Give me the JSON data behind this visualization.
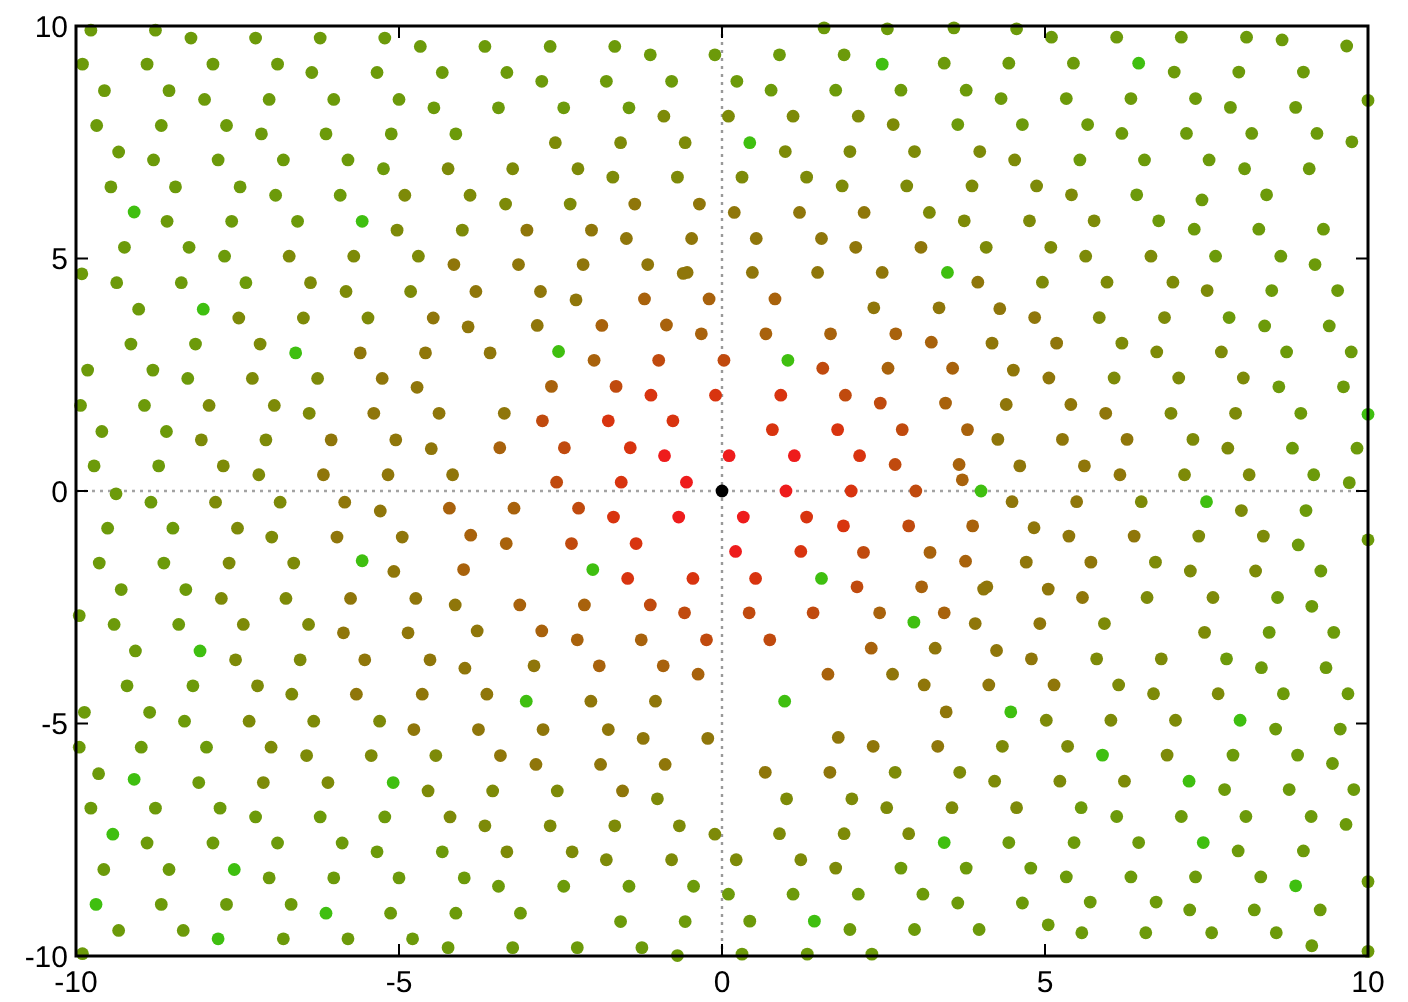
{
  "chart_data": {
    "type": "scatter",
    "xlim": [
      -10,
      10
    ],
    "ylim": [
      -10,
      10
    ],
    "xticks": [
      -10,
      -5,
      0,
      5,
      10
    ],
    "yticks": [
      -10,
      -5,
      0,
      5,
      10
    ],
    "grid": false,
    "marker": "circle",
    "ref_lines": [
      {
        "axis": "x",
        "value": 0,
        "color": "#999999",
        "line_style": "dotted"
      },
      {
        "axis": "y",
        "value": 0,
        "color": "#a3a3a3",
        "line_style": "dotted"
      }
    ],
    "series": [
      {
        "color": "#000000",
        "x": [
          0
        ],
        "values": [
          0
        ]
      },
      {
        "color": "#ee1c1c",
        "x": [
          0.99,
          0.11,
          -0.89,
          -0.55,
          0.33,
          -0.67,
          0.21,
          1.12
        ],
        "values": [
          0,
          0.76,
          0.76,
          0.19,
          -0.56,
          -0.56,
          -1.3,
          0.76
        ]
      },
      {
        "color": "#d8340f",
        "x": [
          1.22,
          -0.1,
          0.91,
          0.78,
          1.79,
          2.0,
          -0.76,
          -1.76,
          -1.56,
          -1.68,
          -1.33,
          -1.46,
          -0.45,
          0.52,
          1.31,
          1.88,
          -1.1,
          -1.42,
          2.13
        ],
        "values": [
          -1.3,
          2.06,
          2.06,
          1.32,
          1.32,
          0,
          1.51,
          1.51,
          0.19,
          -0.56,
          -1.13,
          -1.88,
          -1.88,
          -1.88,
          -0.56,
          -0.75,
          2.06,
          0.93,
          0.76
        ]
      },
      {
        "color": "#c04a0e",
        "x": [
          2.09,
          3.0,
          -2.56,
          -2.33,
          0.42,
          1.41,
          -0.58,
          -1.11,
          -2.22,
          -2.44,
          -2.78,
          -1.64,
          -0.98,
          0.03,
          1.56,
          1.91,
          2.79,
          2.68,
          2.89,
          2.19,
          2.45,
          0.74,
          -0.24
        ],
        "values": [
          -2.06,
          0,
          0.19,
          -1.13,
          -2.62,
          -2.62,
          -2.62,
          -2.45,
          -0.37,
          0.93,
          1.51,
          2.25,
          2.81,
          2.81,
          2.64,
          2.06,
          1.32,
          0.57,
          -0.75,
          -1.32,
          1.89,
          -3.2,
          -3.2
        ]
      },
      {
        "color": "#a8620c",
        "x": [
          3.09,
          -3.34,
          -3.22,
          -3.44,
          -2.64,
          -1.98,
          -1.86,
          -1.2,
          -0.2,
          -0.32,
          0.68,
          1.68,
          0.82,
          2.57,
          3.67,
          3.8,
          3.46,
          3.57,
          3.24,
          2.69,
          -0.86,
          3.22,
          3.77,
          2.44,
          3.44,
          2.31,
          -0.37,
          -0.91,
          -1.9,
          -2.24,
          -2.13,
          -3.13,
          -1.25,
          3.88,
          1.64,
          -2.79,
          -4.22,
          -3.89,
          -4.0,
          3.72
        ],
        "values": [
          -2.06,
          -1.13,
          -0.37,
          0.93,
          2.25,
          2.81,
          3.56,
          4.13,
          4.13,
          3.38,
          3.38,
          3.38,
          4.13,
          2.64,
          0.57,
          1.32,
          1.89,
          2.64,
          3.2,
          3.38,
          3.57,
          -1.32,
          -1.51,
          -2.62,
          -2.62,
          -3.38,
          -3.94,
          -3.76,
          -3.76,
          -3.2,
          -2.45,
          -2.45,
          -3.2,
          -0.75,
          -3.94,
          -3.01,
          -0.37,
          -0.95,
          -1.69,
          0.24
        ]
      },
      {
        "color": "#8f760a",
        "x": [
          -0.54,
          0.47,
          1.48,
          2.48,
          2.35,
          3.36,
          -2.86,
          2.64,
          3.3,
          4.1,
          -1.03,
          -2.03,
          -2.91,
          -3.79,
          -4.13,
          -1.35,
          -0.35,
          -3.02,
          -2.02,
          -1.48,
          -0.47,
          -4.15,
          -3.15,
          -2.15,
          -1.15,
          -0.6,
          -3.81,
          -2.81,
          -2.26,
          -4.47,
          -3.93,
          -5.6,
          -4.59,
          -3.59,
          -5.26,
          -4.72,
          -5.39,
          -4.38,
          -3.37,
          -6.05,
          -5.05,
          -4.5,
          -6.17,
          -5.17,
          -4.17,
          4.49,
          5.49,
          4.83,
          5.37,
          6.38,
          4.71,
          5.71,
          4.05,
          5.05,
          5.58,
          3.92,
          4.92,
          4.25,
          4.79,
          3.13,
          4.13,
          5.14,
          3.47,
          1.8,
          2.34,
          3.34,
          0.67,
          1.67,
          0.19,
          1.2,
          2.2,
          0.53,
          1.54,
          2.07,
          3.08,
          3.96,
          4.3,
          4.84,
          4.18,
          5.18,
          4.51,
          5.06,
          4.4,
          5.4,
          5.94,
          4.27,
          5.27,
          6.27,
          4.61,
          5.61,
          6.16,
          -5.84,
          -5.29,
          -5.96,
          -4.95,
          -5.08,
          -5.75,
          -4.74,
          -5.86,
          -4.86,
          -5.53,
          -4.52,
          -3.98,
          -5.66,
          -4.64,
          -3.64,
          -4.77,
          -3.77,
          -2.77,
          -1.76,
          -1.22,
          -0.22,
          -3.43,
          -2.88,
          -1.88,
          -0.88,
          -1.54
        ],
        "values": [
          4.7,
          4.7,
          4.7,
          4.7,
          3.94,
          3.94,
          3.56,
          -3.94,
          -3.38,
          -2.06,
          -4.52,
          -4.52,
          -3.76,
          -3.01,
          -2.45,
          6.17,
          6.17,
          5.61,
          5.61,
          5.43,
          5.43,
          4.87,
          4.87,
          4.87,
          4.87,
          4.68,
          4.29,
          4.29,
          4.11,
          3.72,
          3.53,
          2.97,
          2.97,
          2.97,
          2.42,
          2.23,
          1.67,
          1.67,
          1.67,
          1.1,
          1.1,
          0.91,
          0.35,
          0.35,
          0.35,
          -0.23,
          -0.23,
          -0.79,
          -0.97,
          -0.97,
          -1.53,
          -1.53,
          -2.11,
          -2.11,
          -2.29,
          -2.85,
          -2.85,
          -3.43,
          -3.61,
          -4.17,
          -4.17,
          -4.17,
          -4.75,
          -5.3,
          -5.49,
          -5.49,
          -6.05,
          -6.05,
          5.99,
          5.99,
          5.99,
          5.43,
          5.43,
          5.24,
          5.24,
          4.49,
          3.92,
          3.73,
          3.18,
          3.18,
          2.6,
          2.43,
          1.86,
          1.86,
          1.67,
          1.11,
          1.11,
          1.11,
          0.54,
          0.54,
          0.35,
          -0.24,
          -0.43,
          -0.99,
          -0.99,
          -1.73,
          -2.31,
          -2.31,
          -3.05,
          -3.05,
          -3.63,
          -3.63,
          -3.81,
          -4.37,
          -4.37,
          -4.37,
          -5.13,
          -5.13,
          -5.13,
          -5.13,
          -5.32,
          -5.32,
          -5.69,
          -5.88,
          -5.88,
          -5.88,
          -6.45
        ]
      },
      {
        "color": "#7d8a08",
        "x": [
          -0.9,
          -2.58,
          -1.57,
          -0.57,
          -4.24,
          -3.24,
          -2.23,
          -1.69,
          -0.69,
          -4.91,
          -3.9,
          -3.35,
          -2.35,
          -5.03,
          -4.02,
          -6.7,
          -5.7,
          -4.7,
          -6.37,
          -5.82,
          -4.82,
          -7.48,
          -6.48,
          -5.48,
          -7.15,
          -7.27,
          -6.26,
          -7.94,
          -6.93,
          -6.39,
          -8.06,
          -7.06,
          -7.72,
          -7.17,
          6.49,
          8.04,
          7.38,
          8.38,
          6.71,
          7.25,
          8.26,
          6.58,
          7.6,
          5.92,
          7.47,
          5.8,
          6.8,
          6.14,
          6.68,
          7.68,
          5.02,
          6.02,
          7.02,
          4.34,
          5.35,
          6.89,
          2.68,
          3.68,
          4.22,
          5.23,
          6.23,
          1.0,
          2.01,
          2.55,
          3.56,
          4.56,
          0.89,
          1.89,
          2.89,
          0.22,
          1.22,
          1.76,
          0.1,
          1.1,
          2.11,
          2.65,
          0.98,
          1.98,
          2.98,
          3.99,
          4.53,
          0.31,
          1.31,
          1.86,
          2.86,
          3.87,
          4.87,
          5.41,
          3.21,
          3.75,
          4.76,
          5.76,
          4.09,
          5.09,
          5.63,
          6.64,
          4.96,
          5.96,
          6.98,
          7.51,
          5.84,
          6.85,
          6.19,
          6.73,
          7.73,
          6.07,
          7.07,
          8.07,
          6.95,
          7.95,
          7.29,
          7.83,
          7.16,
          8.16,
          -7.84,
          -6.84,
          -7.5,
          -6.97,
          -7.63,
          -6.63,
          -7.75,
          -6.75,
          -7.41,
          -6.4,
          -7.53,
          -6.53,
          -7.19,
          -6.66,
          -7.32,
          -6.32,
          -5.3,
          -6.98,
          -6.43,
          -5.43,
          -4.43,
          -7.1,
          -6.1,
          -4.55,
          -3.55,
          -2.55,
          -1.0,
          -4.21,
          -3.67,
          -2.66,
          -1.66,
          -0.66,
          -0.11,
          -3.33,
          -2.32,
          -1.79,
          -0.78
        ],
        "values": [
          8.06,
          7.49,
          7.49,
          7.49,
          6.93,
          6.93,
          6.93,
          6.75,
          6.75,
          6.36,
          6.36,
          6.17,
          6.17,
          5.61,
          5.61,
          5.05,
          5.05,
          5.05,
          4.48,
          4.29,
          4.29,
          3.72,
          3.72,
          3.72,
          3.16,
          2.42,
          2.42,
          1.84,
          1.84,
          1.67,
          1.1,
          1.1,
          0.54,
          0.35,
          -0.23,
          -0.42,
          -0.97,
          -0.97,
          -1.53,
          -1.72,
          -1.72,
          -2.29,
          -2.29,
          -2.85,
          -3.04,
          -3.61,
          -3.61,
          -4.17,
          -4.36,
          -4.36,
          -4.93,
          -4.93,
          -4.93,
          -5.49,
          -5.49,
          -5.68,
          -6.05,
          -6.05,
          -6.24,
          -6.24,
          -6.24,
          -6.62,
          -6.62,
          -6.81,
          -6.81,
          -6.81,
          -7.37,
          -7.37,
          -7.37,
          -7.93,
          -7.93,
          -8.11,
          8.06,
          8.06,
          8.06,
          7.88,
          7.3,
          7.3,
          7.3,
          7.3,
          7.12,
          6.75,
          6.75,
          6.56,
          6.56,
          6.56,
          6.56,
          6.37,
          5.99,
          5.81,
          5.81,
          5.81,
          5.24,
          5.24,
          5.05,
          5.05,
          4.49,
          4.49,
          4.49,
          4.31,
          3.73,
          3.73,
          3.18,
          2.99,
          2.99,
          2.43,
          2.43,
          2.43,
          1.67,
          1.67,
          1.11,
          0.92,
          0.35,
          0.35,
          -0.24,
          -0.24,
          -0.8,
          -0.99,
          -1.55,
          -1.55,
          -2.31,
          -2.31,
          -2.87,
          -2.87,
          -3.63,
          -3.63,
          -4.19,
          -4.37,
          -4.95,
          -4.95,
          -4.95,
          -5.51,
          -5.69,
          -5.69,
          -5.69,
          -6.27,
          -6.27,
          -6.45,
          -6.45,
          -6.45,
          -6.62,
          -7.01,
          -7.2,
          -7.2,
          -7.2,
          -7.2,
          -7.38,
          -7.76,
          -7.76,
          -7.93,
          -7.93
        ]
      },
      {
        "color": "#6c9a0a",
        "x": [
          5.05,
          5.57,
          6.56,
          7.58,
          8.58,
          9.13,
          5.7,
          6.72,
          7.24,
          8.24,
          9.26,
          1.58,
          3.59,
          -9.9,
          10,
          10,
          10,
          10,
          7.43,
          8.67,
          -8.22,
          -7.22,
          -6.22,
          -5.22,
          -9.77,
          -8.77,
          -4.67,
          -3.67,
          -2.66,
          -1.66,
          -1.11,
          -0.11,
          -9.9,
          -8.9,
          -7.88,
          -6.88,
          -6.35,
          -5.34,
          -4.33,
          -3.33,
          -2.79,
          -1.79,
          -0.78,
          -9.56,
          -8.56,
          -8.01,
          -7.01,
          -6.01,
          -5.0,
          -4.46,
          -3.46,
          -2.45,
          -1.44,
          -9.68,
          -8.68,
          -7.67,
          -7.13,
          -6.13,
          -5.12,
          -4.12,
          -9.34,
          -8.8,
          -7.8,
          -6.79,
          -5.79,
          -5.24,
          -9.46,
          -8.46,
          -7.46,
          -6.91,
          -5.91,
          -8.59,
          -7.59,
          -6.57,
          -9.25,
          -8.25,
          -7.7,
          -9.91,
          -9.37,
          -8.37,
          -7.37,
          -9.03,
          -9.15,
          -8.15,
          -9.82,
          -8.81,
          -8.27,
          -9.93,
          -8.94,
          -9.6,
          -8.6,
          -9.72,
          -8.72,
          9.04,
          8.92,
          9.27,
          8.6,
          9.13,
          8.47,
          9.47,
          7.81,
          8.35,
          9.35,
          8.69,
          9.69,
          8.57,
          9.57,
          7.91,
          8.91,
          9.45,
          7.78,
          8.78,
          9.78,
          5.56,
          6.11,
          7.11,
          8.11,
          9.12,
          9.66,
          4.44,
          5.45,
          6.45,
          7.99,
          9.0,
          2.77,
          3.78,
          4.78,
          5.33,
          6.33,
          7.33,
          8.34,
          0.1,
          1.1,
          2.11,
          3.11,
          3.65,
          4.65,
          0.43,
          1.98,
          2.98,
          3.98,
          0.31,
          1.32,
          2.32,
          2.56,
          4.56,
          5.1,
          6.11,
          7.11,
          8.12,
          9.67,
          0.89,
          1.89,
          3.44,
          4.44,
          5.44,
          7.0,
          8.0,
          9.0,
          0.23,
          0.76,
          1.76,
          2.77,
          3.78,
          4.32,
          5.33,
          6.33,
          7.33,
          7.87,
          8.88,
          3.65,
          4.65,
          5.66,
          6.19,
          7.19,
          8.2,
          9.21,
          9.75,
          5.54,
          6.54,
          7.54,
          8.09,
          9.09,
          6.42,
          8.43,
          6.76,
          7.31,
          8.31,
          9.31,
          7.64,
          8.65,
          9.18,
          8.51,
          9.53,
          7.85,
          8.4,
          9.4,
          8.74,
          9.74,
          8.62,
          9.62,
          8.96,
          8.83,
          9.83,
          9.16,
          9.71,
          -9.38,
          -8.84,
          -9.51,
          -8.5,
          -9.64,
          -8.64,
          -9.3,
          -8.3,
          -9.95,
          -9.41,
          -8.41,
          -9.08,
          -9.21,
          -8.19,
          -9.87,
          -8.86,
          -8.32,
          -9.95,
          -8.99,
          -7.98,
          -9.65,
          -8.1,
          -9.77,
          -8.77,
          -7.77,
          -7.22,
          -6.22,
          -5.22,
          -8.9,
          -7.88,
          -6.88,
          -5.88,
          -5.34,
          -4.33,
          -9.57,
          -8.56,
          -7.01,
          -6.01,
          -5.0,
          -3.99,
          -3.46,
          -2.45,
          -1.44,
          -0.44,
          -8.68,
          -7.67,
          -6.67,
          -5.13,
          -4.12,
          -3.12,
          -1.57,
          -0.57,
          -9.34,
          -8.34,
          -6.79,
          -5.79,
          -4.79,
          -4.24,
          -3.24,
          -2.24,
          -1.24,
          -0.69
        ],
        "values": [
          -9.33,
          -9.5,
          -9.5,
          -9.5,
          -9.5,
          -9.78,
          -8.84,
          -8.84,
          -9.01,
          -9.01,
          -9.01,
          9.96,
          9.96,
          -9.95,
          -9.9,
          -1.05,
          -8.4,
          8.4,
          6.26,
          9.7,
          9.74,
          9.74,
          9.74,
          9.74,
          9.91,
          9.91,
          9.56,
          9.56,
          9.56,
          9.56,
          9.38,
          9.38,
          9.18,
          9.18,
          9.18,
          9.18,
          9.0,
          9.0,
          9.0,
          9.0,
          8.81,
          8.81,
          8.81,
          8.61,
          8.61,
          8.42,
          8.42,
          8.42,
          8.42,
          8.24,
          8.24,
          8.24,
          8.24,
          7.86,
          7.86,
          7.86,
          7.68,
          7.68,
          7.68,
          7.68,
          7.29,
          7.12,
          7.12,
          7.12,
          7.12,
          6.93,
          6.54,
          6.54,
          6.54,
          6.36,
          6.36,
          5.8,
          5.8,
          5.8,
          5.24,
          5.24,
          5.05,
          4.67,
          4.48,
          4.48,
          4.48,
          3.91,
          3.16,
          3.16,
          2.6,
          2.6,
          2.42,
          1.84,
          1.84,
          1.28,
          1.28,
          0.54,
          0.54,
          -0.42,
          -1.16,
          -1.72,
          -2.29,
          -2.48,
          -3.04,
          -3.04,
          -3.61,
          -3.8,
          -3.8,
          -4.36,
          -4.36,
          -5.12,
          -5.12,
          -5.68,
          -5.68,
          -5.86,
          -6.42,
          -6.42,
          -6.42,
          -6.81,
          -7.0,
          -7.0,
          -7.0,
          -7.0,
          -7.17,
          -7.56,
          -7.56,
          -7.56,
          -7.74,
          -7.74,
          -8.11,
          -8.11,
          -8.11,
          -8.3,
          -8.3,
          -8.3,
          -8.3,
          -8.67,
          -8.67,
          -8.67,
          -8.67,
          -8.86,
          -8.86,
          -9.25,
          -9.43,
          -9.43,
          -9.43,
          -9.96,
          -9.96,
          -9.96,
          9.94,
          9.94,
          9.76,
          9.76,
          9.76,
          9.76,
          9.57,
          9.38,
          9.38,
          9.2,
          9.2,
          9.2,
          9.01,
          9.01,
          9.01,
          8.81,
          8.62,
          8.62,
          8.62,
          8.62,
          8.44,
          8.44,
          8.44,
          8.44,
          8.25,
          8.25,
          7.88,
          7.88,
          7.88,
          7.69,
          7.69,
          7.69,
          7.69,
          7.51,
          7.12,
          7.12,
          7.12,
          6.93,
          6.93,
          6.37,
          6.37,
          5.81,
          5.63,
          5.63,
          5.63,
          5.05,
          5.05,
          4.87,
          4.31,
          4.31,
          3.73,
          3.55,
          3.55,
          2.99,
          2.99,
          2.24,
          2.24,
          1.67,
          0.92,
          0.92,
          0.35,
          0.18,
          -0.06,
          -0.24,
          -0.8,
          -0.8,
          -1.55,
          -1.55,
          -2.12,
          -2.12,
          -2.68,
          -2.87,
          -2.87,
          -3.44,
          -4.19,
          -4.19,
          -4.76,
          -4.76,
          -4.95,
          -5.51,
          -5.51,
          -5.51,
          -6.08,
          -6.27,
          -6.82,
          -6.82,
          -6.82,
          -7.01,
          -7.01,
          -7.01,
          -7.57,
          -7.57,
          -7.57,
          -7.57,
          -7.76,
          -7.76,
          -8.14,
          -8.14,
          -8.32,
          -8.32,
          -8.32,
          -8.32,
          -8.5,
          -8.5,
          -8.5,
          -8.5,
          -8.89,
          -8.89,
          -8.89,
          -9.08,
          -9.08,
          -9.08,
          -9.26,
          -9.26,
          -9.45,
          -9.45,
          -9.63,
          -9.63,
          -9.63,
          -9.82,
          -9.82,
          -9.82,
          -9.82,
          -9.99
        ]
      },
      {
        "color": "#3fbf10",
        "x": [
          4.01,
          0.97,
          -2.0,
          -2.53,
          1.02,
          1.54,
          3.49,
          2.97,
          -3.03,
          2.48,
          -9.1,
          -9.1,
          -5.57,
          10,
          -5.57,
          -8.03,
          -6.6,
          7.5,
          4.47,
          8.02,
          5.89,
          7.23,
          3.44,
          7.45,
          8.88,
          1.43,
          6.45,
          0.43,
          -8.08,
          -5.09,
          -9.43,
          -7.55,
          -9.69,
          -6.13,
          -7.8
        ],
        "values": [
          0,
          -4.52,
          -1.69,
          3.0,
          2.81,
          -1.88,
          4.7,
          -2.82,
          -4.52,
          9.18,
          6.0,
          -6.2,
          -1.5,
          1.65,
          5.8,
          3.91,
          2.97,
          -0.23,
          -4.75,
          -4.93,
          -5.68,
          -6.24,
          -7.56,
          -7.56,
          -8.49,
          -9.25,
          9.2,
          7.49,
          -3.44,
          -6.27,
          -7.38,
          -8.14,
          -8.89,
          -9.08,
          -9.63
        ]
      }
    ]
  }
}
